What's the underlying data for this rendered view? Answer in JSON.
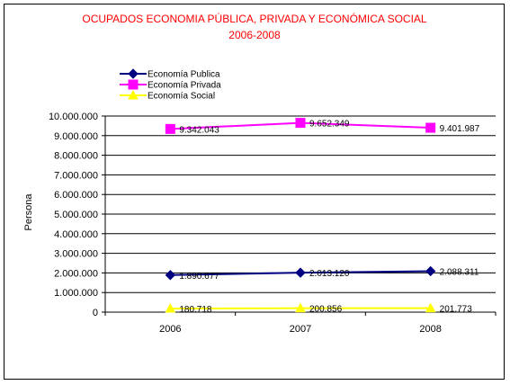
{
  "chart_data": {
    "type": "line",
    "title": "OCUPADOS ECONOMIA PÚBLICA, PRIVADA Y ECONÓMICA SOCIAL",
    "subtitle": "2006-2008",
    "xlabel": "",
    "ylabel": "Persona",
    "categories": [
      "2006",
      "2007",
      "2008"
    ],
    "ylim": [
      0,
      10000000
    ],
    "yticks": [
      0,
      1000000,
      2000000,
      3000000,
      4000000,
      5000000,
      6000000,
      7000000,
      8000000,
      9000000,
      10000000
    ],
    "ytick_labels": [
      "0",
      "1.000.000",
      "2.000.000",
      "3.000.000",
      "4.000.000",
      "5.000.000",
      "6.000.000",
      "7.000.000",
      "8.000.000",
      "9.000.000",
      "10.000.000"
    ],
    "grid": true,
    "legend_position": "top-left",
    "series": [
      {
        "name": "Economía Publica",
        "values": [
          1890677,
          2013120,
          2088311
        ],
        "labels": [
          "1.890.677",
          "2.013.120",
          "2.088.311"
        ],
        "color": "#000080",
        "marker": "diamond"
      },
      {
        "name": "Economía Privada",
        "values": [
          9342043,
          9652349,
          9401987
        ],
        "labels": [
          "9.342.043",
          "9.652.349",
          "9.401.987"
        ],
        "color": "#ff00ff",
        "marker": "square"
      },
      {
        "name": "Economía Social",
        "values": [
          180718,
          200856,
          201773
        ],
        "labels": [
          "180.718",
          "200.856",
          "201.773"
        ],
        "color": "#ffff00",
        "marker": "triangle"
      }
    ]
  }
}
